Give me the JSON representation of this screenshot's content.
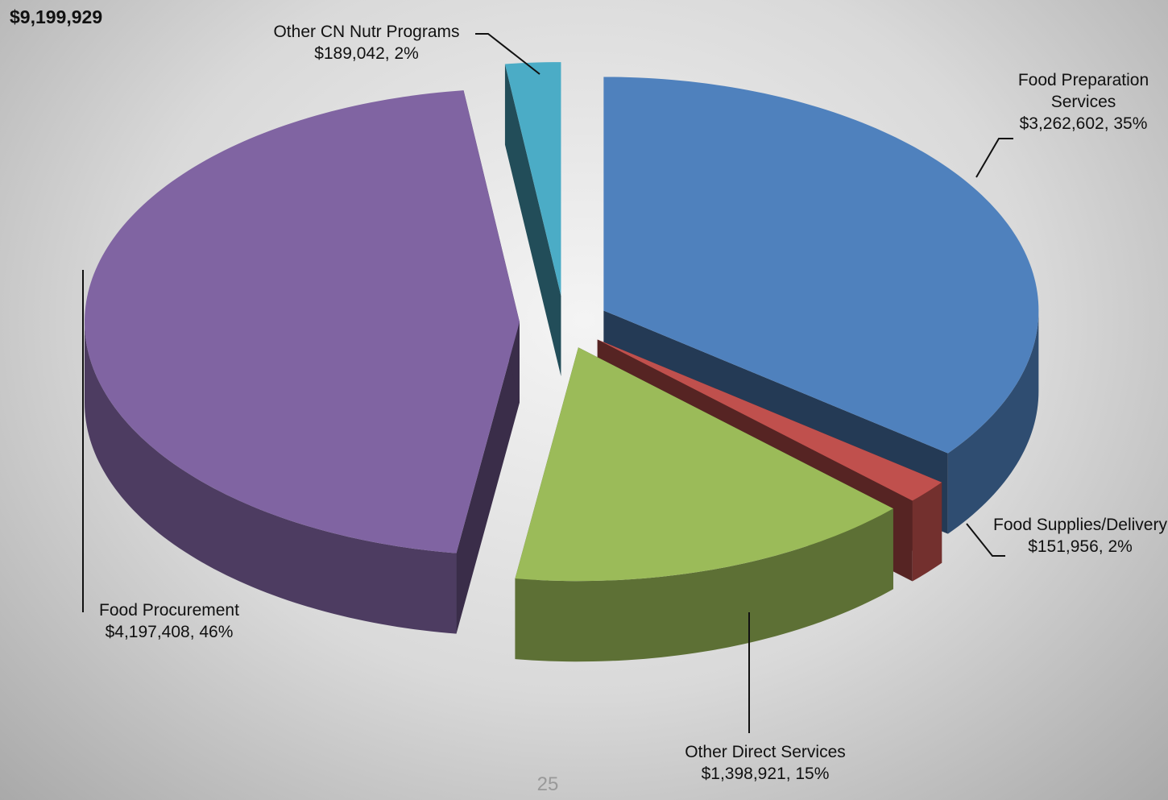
{
  "chart_data": {
    "type": "pie",
    "title": "$9,199,929",
    "categories": [
      "Food Preparation Services",
      "Food Supplies/Delivery",
      "Other Direct Services",
      "Food Procurement",
      "Other CN Nutr Programs"
    ],
    "values": [
      3262602,
      151956,
      1398921,
      4197408,
      189042
    ],
    "value_labels": [
      "$3,262,602, 35%",
      "$151,956, 2%",
      "$1,398,921, 15%",
      "$4,197,408, 46%",
      "$189,042, 2%"
    ],
    "colors": [
      "#4f81bd",
      "#c0504d",
      "#9bbb59",
      "#8064a2",
      "#4bacc6"
    ],
    "three_d": true,
    "exploded": true
  },
  "footer": {
    "page_number": "25"
  }
}
